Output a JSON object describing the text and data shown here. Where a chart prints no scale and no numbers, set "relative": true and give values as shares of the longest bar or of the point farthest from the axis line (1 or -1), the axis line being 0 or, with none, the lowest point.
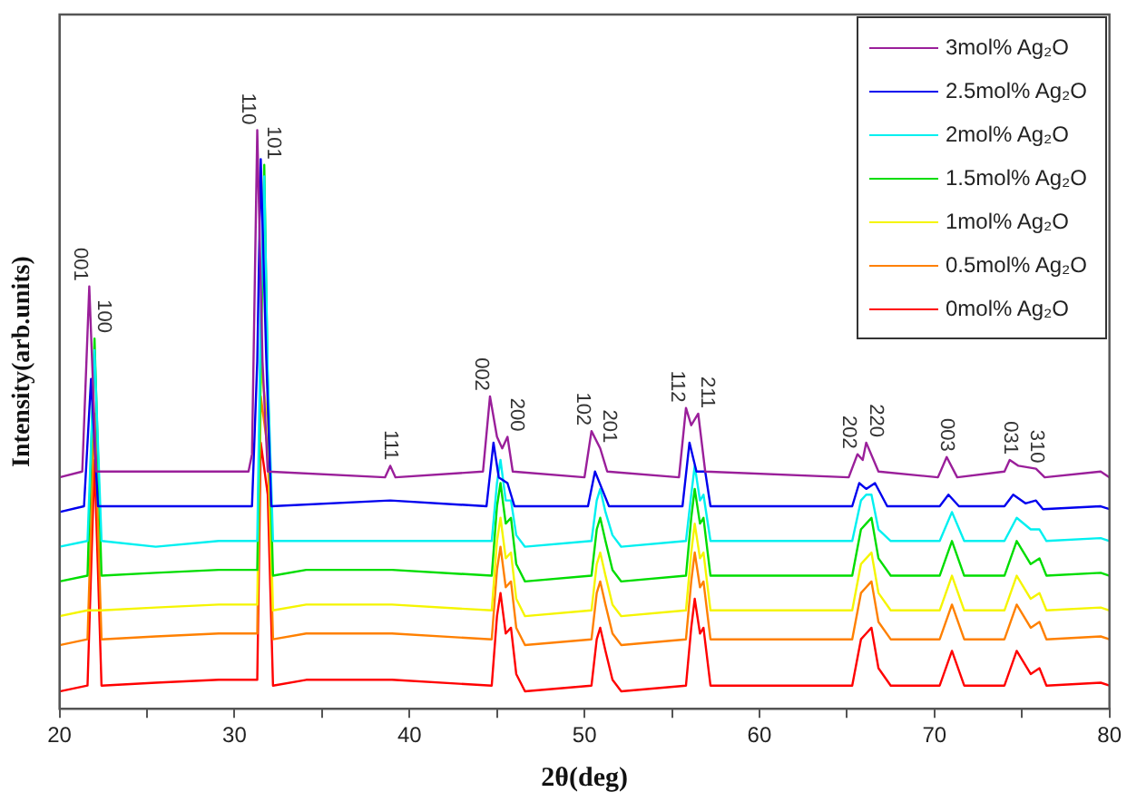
{
  "chart_data": {
    "type": "line",
    "relative": true,
    "xlabel": "2θ(deg)",
    "ylabel": "Intensity(arb.units)",
    "xlim": [
      20,
      80
    ],
    "xticks": [
      20,
      {
        "value": 25,
        "label": null
      },
      30,
      {
        "value": 35,
        "label": null
      },
      40,
      {
        "value": 45,
        "label": null
      },
      50,
      {
        "value": 55,
        "label": null
      },
      60,
      {
        "value": 65,
        "label": null
      },
      70,
      {
        "value": 75,
        "label": null
      },
      80
    ],
    "legend": "top right",
    "grid": false,
    "x": [
      20,
      21.6,
      22.0,
      22.4,
      25.5,
      29.1,
      31.3,
      31.5,
      31.7,
      31.9,
      32.2,
      34.1,
      39.0,
      44.7,
      45.0,
      45.2,
      45.5,
      45.8,
      46.1,
      46.6,
      50.4,
      50.7,
      50.9,
      51.2,
      51.6,
      52.1,
      55.8,
      56.1,
      56.3,
      56.6,
      56.8,
      57.2,
      65.3,
      65.8,
      66.1,
      66.4,
      66.8,
      67.5,
      70.3,
      71.0,
      71.7,
      74.0,
      74.7,
      75.5,
      76.0,
      76.4,
      79.5,
      80
    ],
    "series": [
      {
        "name": "3mol% Ag₂O",
        "color": "#9a1f9a",
        "x": [
          20,
          21.3,
          21.7,
          22.1,
          30.8,
          31.0,
          31.3,
          31.6,
          31.9,
          38.6,
          38.9,
          39.2,
          44.2,
          44.6,
          45.0,
          45.3,
          45.6,
          45.9,
          50.0,
          50.4,
          50.9,
          51.3,
          55.4,
          55.8,
          56.1,
          56.5,
          56.9,
          65.1,
          65.6,
          65.9,
          66.1,
          66.8,
          70.2,
          70.7,
          71.3,
          74.0,
          74.3,
          74.8,
          75.8,
          76.3,
          79.5,
          80
        ],
        "values": [
          0.4,
          0.41,
          0.73,
          0.41,
          0.41,
          0.44,
          1,
          0.6,
          0.41,
          0.4,
          0.42,
          0.4,
          0.41,
          0.54,
          0.47,
          0.45,
          0.47,
          0.41,
          0.4,
          0.48,
          0.45,
          0.41,
          0.4,
          0.52,
          0.49,
          0.51,
          0.41,
          0.4,
          0.44,
          0.43,
          0.46,
          0.41,
          0.4,
          0.435,
          0.4,
          0.41,
          0.43,
          0.42,
          0.415,
          0.4,
          0.41,
          0.4
        ]
      },
      {
        "name": "2.5mol% Ag₂O",
        "color": "#0000ee",
        "x": [
          20,
          21.4,
          21.8,
          22.2,
          31.0,
          31.3,
          31.5,
          31.8,
          32.1,
          38.9,
          44.4,
          44.8,
          45.1,
          45.6,
          46.0,
          50.2,
          50.6,
          51.0,
          51.4,
          55.6,
          56.0,
          56.4,
          56.9,
          57.2,
          65.3,
          65.7,
          66.1,
          66.6,
          67.3,
          70.3,
          70.8,
          71.4,
          74.0,
          74.5,
          75.2,
          75.8,
          76.2,
          79.5,
          80
        ],
        "values": [
          0.34,
          0.35,
          0.57,
          0.35,
          0.35,
          0.6,
          0.95,
          0.62,
          0.35,
          0.36,
          0.35,
          0.46,
          0.4,
          0.39,
          0.35,
          0.35,
          0.41,
          0.38,
          0.35,
          0.35,
          0.46,
          0.41,
          0.41,
          0.35,
          0.35,
          0.39,
          0.38,
          0.39,
          0.35,
          0.35,
          0.37,
          0.35,
          0.35,
          0.37,
          0.355,
          0.36,
          0.345,
          0.35,
          0.345
        ]
      },
      {
        "name": "2mol% Ag₂O",
        "color": "#00f0f0",
        "values": [
          0.28,
          0.29,
          0.62,
          0.29,
          0.28,
          0.29,
          0.29,
          0.68,
          0.92,
          0.58,
          0.29,
          0.29,
          0.29,
          0.29,
          0.39,
          0.43,
          0.36,
          0.36,
          0.3,
          0.28,
          0.29,
          0.36,
          0.38,
          0.34,
          0.3,
          0.28,
          0.29,
          0.37,
          0.42,
          0.36,
          0.37,
          0.29,
          0.29,
          0.36,
          0.37,
          0.37,
          0.31,
          0.29,
          0.29,
          0.34,
          0.29,
          0.29,
          0.33,
          0.31,
          0.31,
          0.29,
          0.295,
          0.29
        ]
      },
      {
        "name": "1.5mol% Ag₂O",
        "color": "#00dd00",
        "values": [
          0.22,
          0.23,
          0.64,
          0.23,
          0.235,
          0.24,
          0.24,
          null,
          0.94,
          0.56,
          0.23,
          0.24,
          0.24,
          0.23,
          0.35,
          0.39,
          0.32,
          0.33,
          0.25,
          0.22,
          0.23,
          0.31,
          0.33,
          0.29,
          0.24,
          0.22,
          0.23,
          0.33,
          0.38,
          0.32,
          0.33,
          0.23,
          0.23,
          0.31,
          0.32,
          0.33,
          0.26,
          0.23,
          0.23,
          0.29,
          0.23,
          0.23,
          0.29,
          0.25,
          0.26,
          0.23,
          0.235,
          0.23
        ]
      },
      {
        "name": "1mol% Ag₂O",
        "color": "#f5f500",
        "values": [
          0.16,
          0.17,
          null,
          0.17,
          0.175,
          0.18,
          0.18,
          0.59,
          null,
          0.5,
          0.17,
          0.18,
          0.18,
          0.17,
          0.29,
          0.33,
          0.26,
          0.27,
          0.19,
          0.16,
          0.17,
          0.25,
          0.27,
          0.23,
          0.18,
          0.16,
          0.17,
          0.27,
          0.32,
          0.26,
          0.27,
          0.17,
          0.17,
          0.25,
          0.26,
          0.27,
          0.2,
          0.17,
          0.17,
          0.23,
          0.17,
          0.17,
          0.23,
          0.19,
          0.2,
          0.17,
          0.175,
          0.17
        ]
      },
      {
        "name": "0.5mol% Ag₂O",
        "color": "#ff8000",
        "values": [
          0.11,
          0.12,
          0.51,
          0.12,
          0.125,
          0.13,
          0.13,
          0.54,
          null,
          0.45,
          0.12,
          0.13,
          0.13,
          0.12,
          0.24,
          0.28,
          0.21,
          0.22,
          0.14,
          0.11,
          0.12,
          0.2,
          0.22,
          0.18,
          0.13,
          0.11,
          0.12,
          0.22,
          0.27,
          0.21,
          0.22,
          0.12,
          0.12,
          0.2,
          0.21,
          0.22,
          0.15,
          0.12,
          0.12,
          0.18,
          0.12,
          0.12,
          0.18,
          0.14,
          0.15,
          0.12,
          0.125,
          0.12
        ]
      },
      {
        "name": "0mol% Ag₂O",
        "color": "#ff0000",
        "values": [
          0.03,
          0.04,
          0.43,
          0.04,
          0.045,
          0.05,
          0.05,
          0.46,
          null,
          0.37,
          0.04,
          0.05,
          0.05,
          0.04,
          0.16,
          0.2,
          0.13,
          0.14,
          0.06,
          0.03,
          0.04,
          0.12,
          0.14,
          0.1,
          0.05,
          0.03,
          0.04,
          0.14,
          0.19,
          0.13,
          0.14,
          0.04,
          0.04,
          0.12,
          0.13,
          0.14,
          0.07,
          0.04,
          0.04,
          0.1,
          0.04,
          0.04,
          0.1,
          0.06,
          0.07,
          0.04,
          0.045,
          0.04
        ]
      }
    ],
    "annotations": [
      {
        "text": "001",
        "x": 21.7,
        "y": 0.73
      },
      {
        "text": "100",
        "x": 22.0,
        "y": 0.64
      },
      {
        "text": "110",
        "x": 31.3,
        "y": 1
      },
      {
        "text": "101",
        "x": 31.7,
        "y": 0.94
      },
      {
        "text": "111",
        "x": 38.9,
        "y": 0.42
      },
      {
        "text": "002",
        "x": 44.6,
        "y": 0.54
      },
      {
        "text": "200",
        "x": 45.6,
        "y": 0.47
      },
      {
        "text": "102",
        "x": 50.4,
        "y": 0.48
      },
      {
        "text": "201",
        "x": 50.9,
        "y": 0.45
      },
      {
        "text": "112",
        "x": 55.8,
        "y": 0.52
      },
      {
        "text": "211",
        "x": 56.5,
        "y": 0.51
      },
      {
        "text": "202",
        "x": 65.6,
        "y": 0.44
      },
      {
        "text": "220",
        "x": 66.1,
        "y": 0.46
      },
      {
        "text": "003",
        "x": 70.7,
        "y": 0.435
      },
      {
        "text": "031",
        "x": 74.3,
        "y": 0.43
      },
      {
        "text": "310",
        "x": 75.8,
        "y": 0.415
      }
    ]
  }
}
